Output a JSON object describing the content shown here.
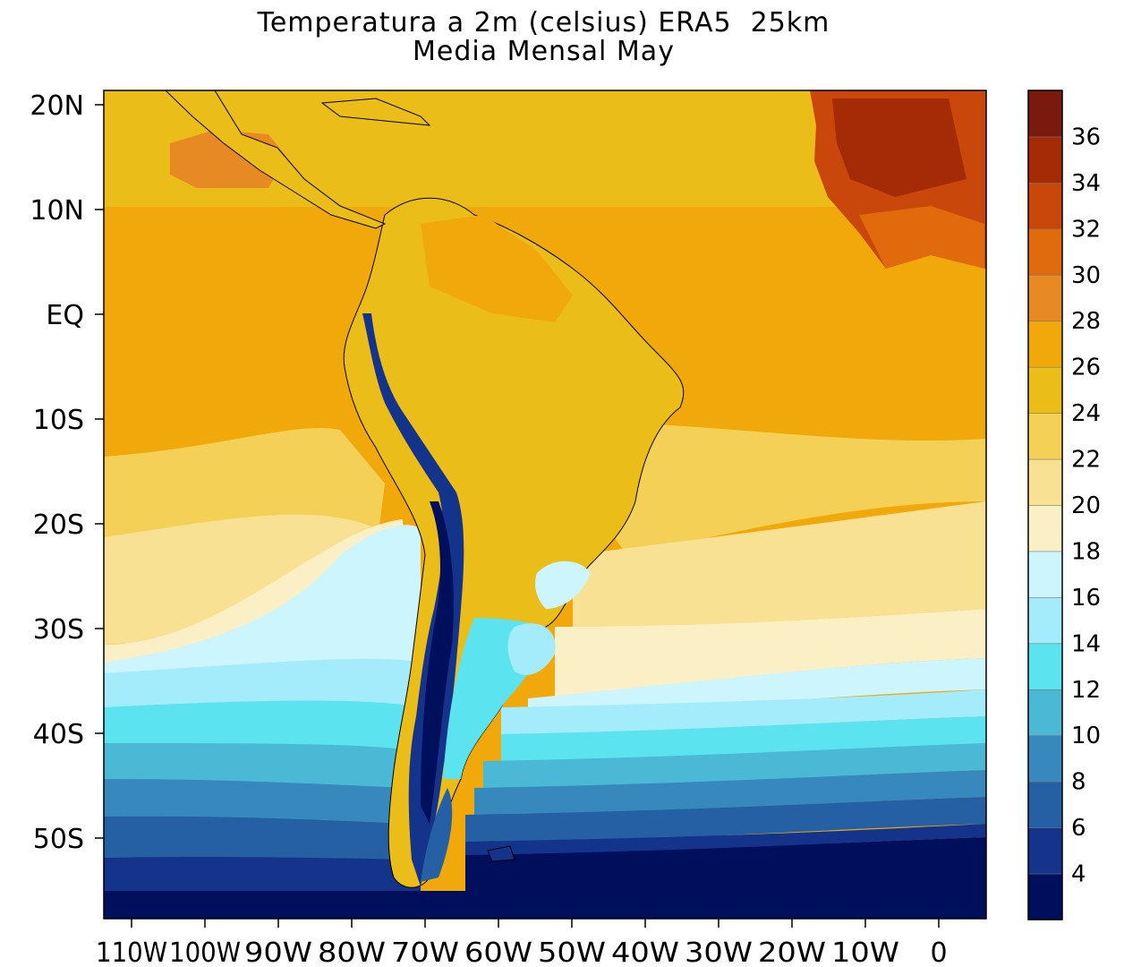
{
  "map": {
    "title_line1": "Temperatura a 2m (celsius) ERA5  25km",
    "title_line2": "Media Mensal May",
    "lat_labels": [
      "20N",
      "10N",
      "EQ",
      "10S",
      "20S",
      "30S",
      "40S",
      "50S"
    ],
    "lon_labels": [
      "110W",
      "100W",
      "90W",
      "80W",
      "70W",
      "60W",
      "50W",
      "40W",
      "30W",
      "20W",
      "10W",
      "0"
    ],
    "colorbar": {
      "labels": [
        "4",
        "6",
        "8",
        "10",
        "12",
        "14",
        "16",
        "18",
        "20",
        "22",
        "24",
        "26",
        "28",
        "30",
        "32",
        "34",
        "36"
      ],
      "colors": [
        "#000f5c",
        "#14338a",
        "#2560a4",
        "#3788bc",
        "#4bb8d6",
        "#5be3ef",
        "#a4ecfb",
        "#cdf5fd",
        "#fbefc6",
        "#f8e193",
        "#f4d056",
        "#ebbd18",
        "#f0a80a",
        "#e88a24",
        "#e16a0c",
        "#c9470a",
        "#a52a06",
        "#7a1a0e"
      ]
    }
  }
}
